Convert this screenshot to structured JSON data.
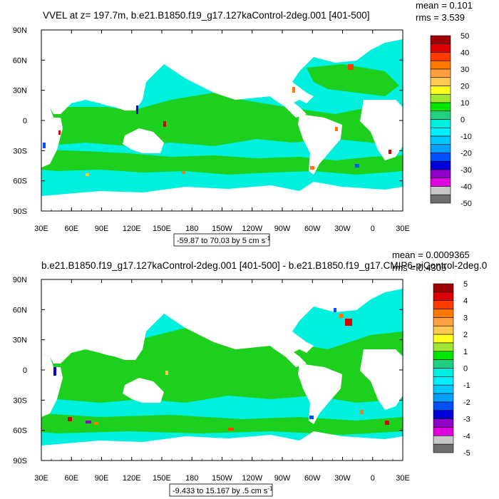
{
  "colors": {
    "ocean_low": "#00f0e0",
    "ocean_mid": "#1ed01e",
    "land": "#ffffff"
  },
  "chart_data": [
    {
      "type": "heatmap",
      "title": "VVEL at z= 197.7m, b.e21.B1850.f19_g17.127kaControl-2deg.001 [401-500]",
      "stats": [
        "mean = 0.101",
        "rms = 3.539"
      ],
      "x_ticks": [
        "30E",
        "60E",
        "90E",
        "120E",
        "150E",
        "180",
        "150W",
        "120W",
        "90W",
        "60W",
        "30W",
        "0",
        "30E"
      ],
      "y_ticks": [
        "90N",
        "60N",
        "30N",
        "0",
        "30S",
        "60S",
        "90S"
      ],
      "lon_range": [
        30,
        390
      ],
      "lat_range": [
        -90,
        90
      ],
      "colorbar": {
        "labels": [
          "50",
          "40",
          "30",
          "20",
          "10",
          "0",
          "-10",
          "-20",
          "-30",
          "-40",
          "-50"
        ],
        "colors": [
          "#a00000",
          "#dd0000",
          "#ff3c00",
          "#ff7800",
          "#ffa040",
          "#ffc850",
          "#ffff20",
          "#a0e632",
          "#00e600",
          "#20d080",
          "#00f0e0",
          "#00f0ff",
          "#00c8ff",
          "#00a0ff",
          "#0050ff",
          "#0000dc",
          "#9000c8",
          "#e000e0",
          "#c8c8c8",
          "#6e6e6e"
        ]
      },
      "range_label": "-59.87 to 70.03 by 5 cm s",
      "range_unit_sup": "-1"
    },
    {
      "type": "heatmap",
      "title": "b.e21.B1850.f19_g17.127kaControl-2deg.001 [401-500] - b.e21.B1850.f19_g17.CMIP6-piControl-2deg.0",
      "stats": [
        "mean = 0.0009365",
        "rms = 0.4305"
      ],
      "x_ticks": [
        "30E",
        "60E",
        "90E",
        "120E",
        "150E",
        "180",
        "150W",
        "120W",
        "90W",
        "60W",
        "30W",
        "0",
        "30E"
      ],
      "y_ticks": [
        "90N",
        "60N",
        "30N",
        "0",
        "30S",
        "60S",
        "90S"
      ],
      "lon_range": [
        30,
        390
      ],
      "lat_range": [
        -90,
        90
      ],
      "colorbar": {
        "labels": [
          "5",
          "4",
          "3",
          "2",
          "1",
          "0",
          "-1",
          "-2",
          "-3",
          "-4",
          "-5"
        ],
        "colors": [
          "#a00000",
          "#dd0000",
          "#ff3c00",
          "#ff7800",
          "#ffa040",
          "#ffc850",
          "#ffff20",
          "#a0e632",
          "#00e600",
          "#20d080",
          "#00f0e0",
          "#00f0ff",
          "#00c8ff",
          "#00a0ff",
          "#0050ff",
          "#0000dc",
          "#9000c8",
          "#e000e0",
          "#c8c8c8",
          "#6e6e6e"
        ]
      },
      "range_label": "-9.433 to 15.167 by .5 cm s",
      "range_unit_sup": "-1"
    }
  ]
}
